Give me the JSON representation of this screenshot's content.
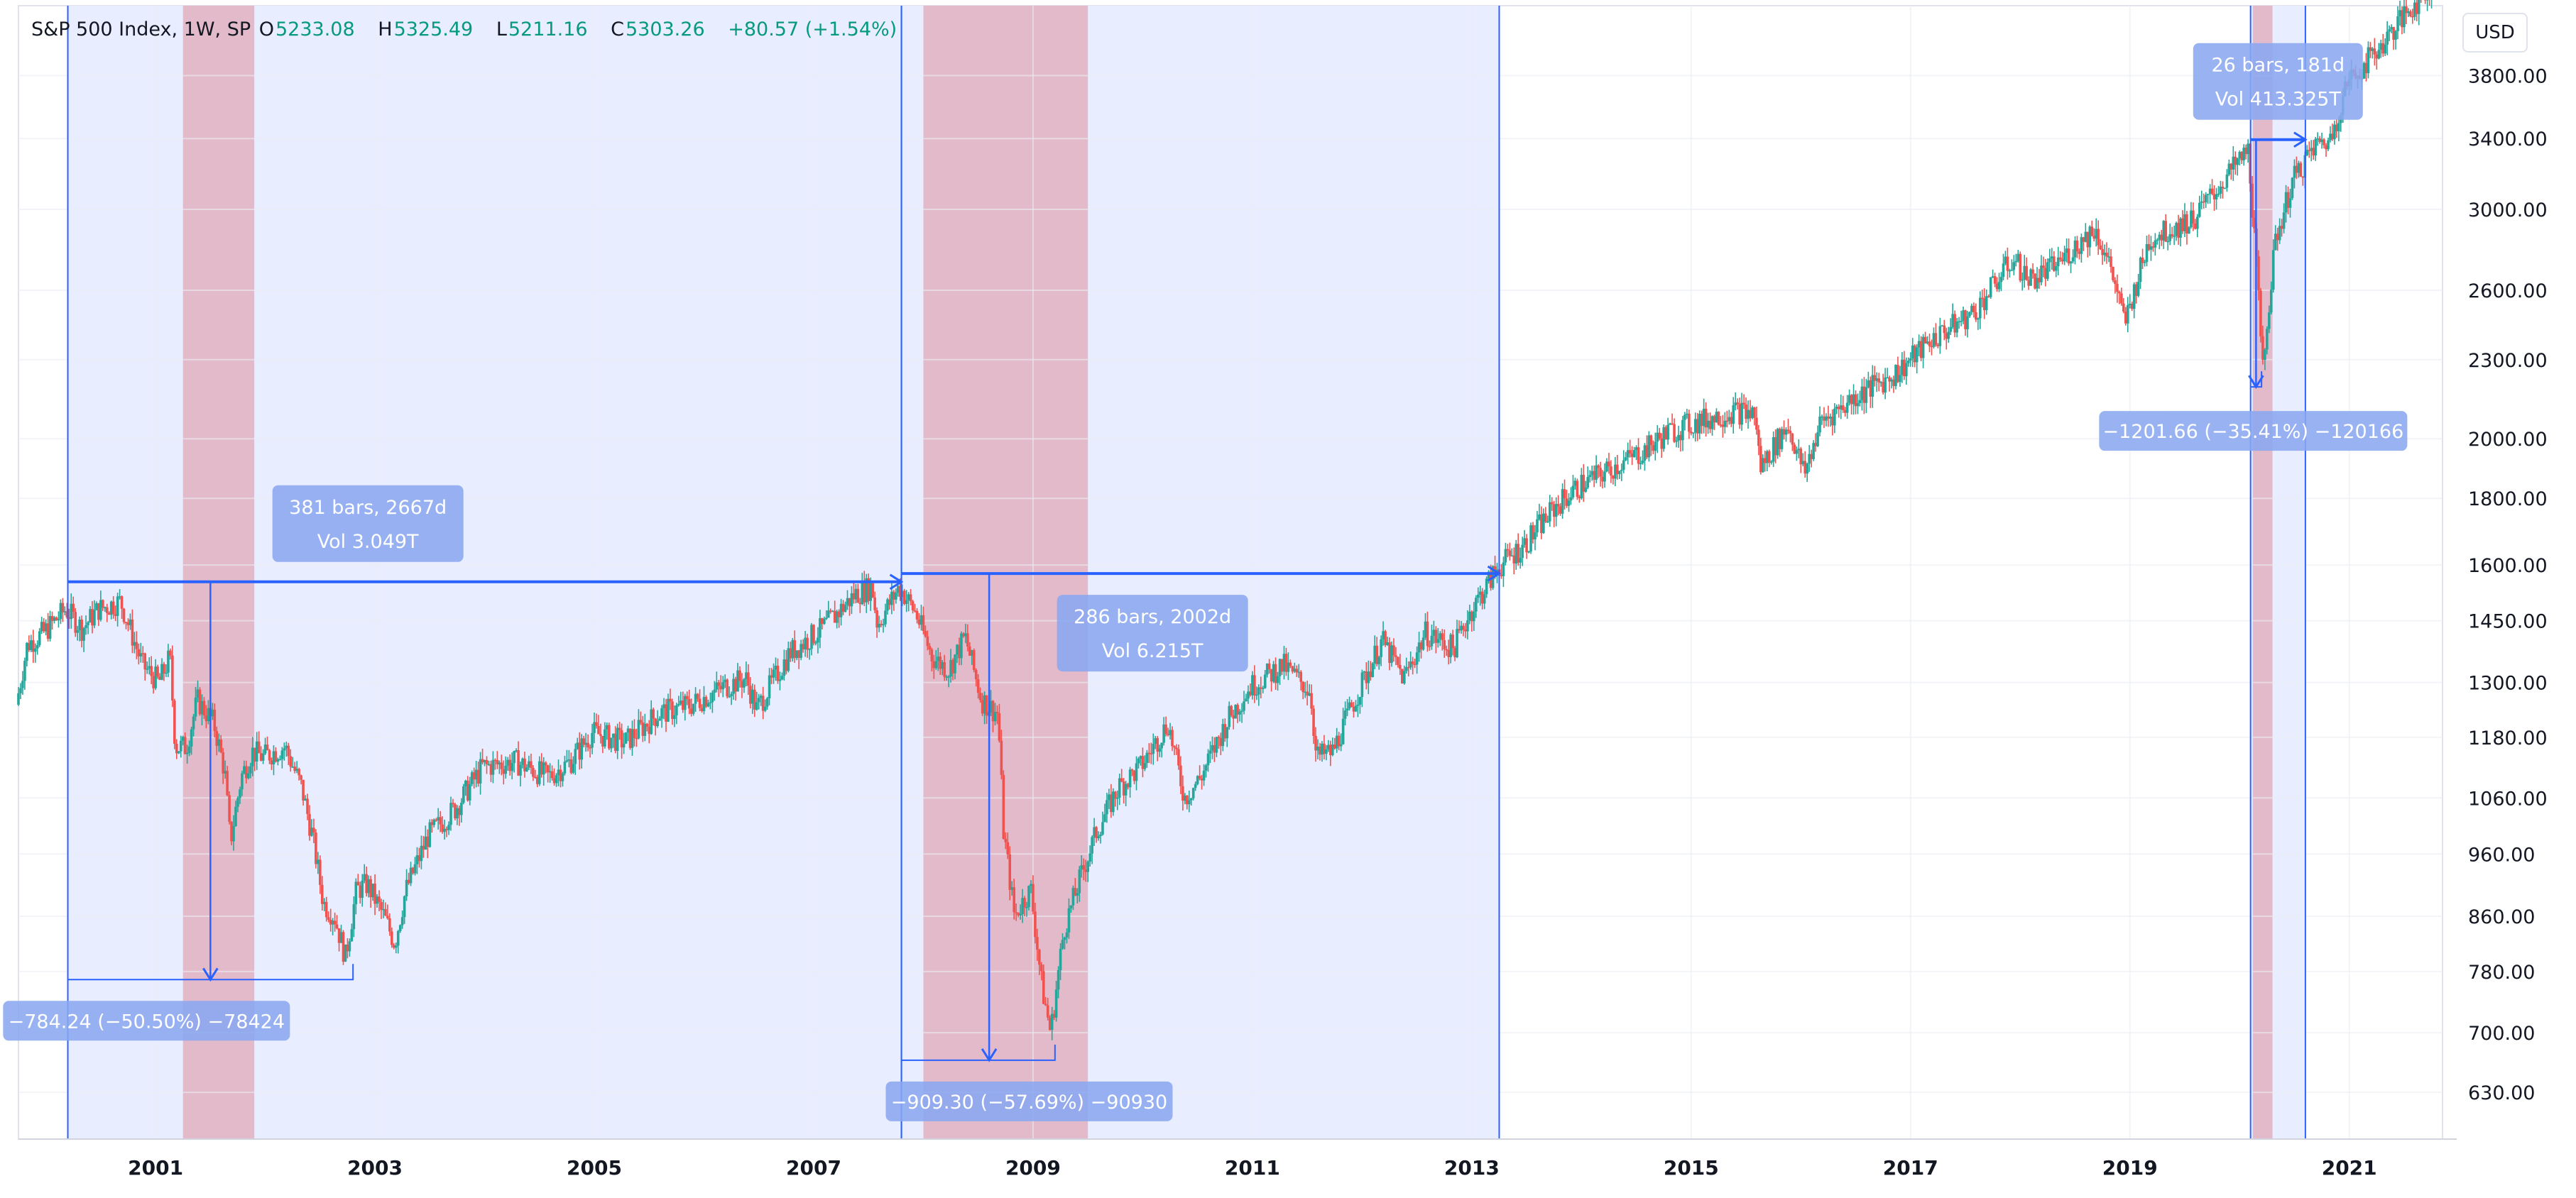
{
  "legend": {
    "symbol": "S&P 500 Index, 1W, SP",
    "open_label": "O",
    "open": "5233.08",
    "high_label": "H",
    "high": "5325.49",
    "low_label": "L",
    "low": "5211.16",
    "close_label": "C",
    "close": "5303.26",
    "change": "+80.57 (+1.54%)"
  },
  "currency": "USD",
  "colors": {
    "up": "#26a69a",
    "down": "#ef5350",
    "measure_fill": "#e8eeff",
    "measure_line": "#2962ff",
    "recession": "#e3b6c6",
    "label_bg": "#8aa7f0"
  },
  "chart_data": {
    "type": "candlestick",
    "scale": "log",
    "x_ticks": [
      "2001",
      "2003",
      "2005",
      "2007",
      "2009",
      "2011",
      "2013",
      "2015",
      "2017",
      "2019",
      "2021"
    ],
    "y_ticks": [
      630,
      700,
      780,
      860,
      960,
      1060,
      1180,
      1300,
      1450,
      1600,
      1800,
      2000,
      2300,
      2600,
      3000,
      3400,
      3800
    ],
    "y_tick_labels": [
      "630.00",
      "700.00",
      "780.00",
      "860.00",
      "960.00",
      "1060.00",
      "1180.00",
      "1300.00",
      "1450.00",
      "1600.00",
      "1800.00",
      "2000.00",
      "2300.00",
      "2600.00",
      "3000.00",
      "3400.00",
      "3800.00"
    ],
    "ylim": [
      580,
      4300
    ],
    "xlim": [
      1999.75,
      2021.85
    ],
    "series_path": [
      [
        1999.75,
        1250
      ],
      [
        1999.85,
        1390
      ],
      [
        2000.0,
        1420
      ],
      [
        2000.2,
        1480
      ],
      [
        2000.35,
        1430
      ],
      [
        2000.5,
        1480
      ],
      [
        2000.7,
        1500
      ],
      [
        2000.9,
        1340
      ],
      [
        2001.05,
        1300
      ],
      [
        2001.15,
        1360
      ],
      [
        2001.2,
        1160
      ],
      [
        2001.3,
        1160
      ],
      [
        2001.4,
        1260
      ],
      [
        2001.55,
        1210
      ],
      [
        2001.65,
        1110
      ],
      [
        2001.7,
        980
      ],
      [
        2001.8,
        1100
      ],
      [
        2001.9,
        1150
      ],
      [
        2002.0,
        1140
      ],
      [
        2002.2,
        1160
      ],
      [
        2002.35,
        1080
      ],
      [
        2002.45,
        990
      ],
      [
        2002.55,
        880
      ],
      [
        2002.65,
        860
      ],
      [
        2002.75,
        800
      ],
      [
        2002.85,
        900
      ],
      [
        2002.95,
        910
      ],
      [
        2003.1,
        860
      ],
      [
        2003.2,
        820
      ],
      [
        2003.3,
        900
      ],
      [
        2003.5,
        990
      ],
      [
        2003.75,
        1040
      ],
      [
        2004.0,
        1120
      ],
      [
        2004.3,
        1130
      ],
      [
        2004.6,
        1100
      ],
      [
        2004.8,
        1130
      ],
      [
        2005.0,
        1190
      ],
      [
        2005.3,
        1170
      ],
      [
        2005.6,
        1230
      ],
      [
        2005.9,
        1250
      ],
      [
        2006.2,
        1290
      ],
      [
        2006.4,
        1310
      ],
      [
        2006.5,
        1240
      ],
      [
        2006.8,
        1370
      ],
      [
        2007.1,
        1430
      ],
      [
        2007.4,
        1520
      ],
      [
        2007.55,
        1540
      ],
      [
        2007.6,
        1440
      ],
      [
        2007.8,
        1540
      ],
      [
        2007.95,
        1470
      ],
      [
        2008.1,
        1360
      ],
      [
        2008.25,
        1330
      ],
      [
        2008.4,
        1410
      ],
      [
        2008.55,
        1260
      ],
      [
        2008.7,
        1230
      ],
      [
        2008.75,
        1000
      ],
      [
        2008.85,
        860
      ],
      [
        2008.95,
        890
      ],
      [
        2009.0,
        900
      ],
      [
        2009.1,
        760
      ],
      [
        2009.18,
        700
      ],
      [
        2009.3,
        840
      ],
      [
        2009.45,
        920
      ],
      [
        2009.6,
        1000
      ],
      [
        2009.8,
        1080
      ],
      [
        2010.0,
        1120
      ],
      [
        2010.25,
        1210
      ],
      [
        2010.4,
        1060
      ],
      [
        2010.55,
        1100
      ],
      [
        2010.8,
        1220
      ],
      [
        2011.0,
        1290
      ],
      [
        2011.3,
        1340
      ],
      [
        2011.55,
        1280
      ],
      [
        2011.6,
        1140
      ],
      [
        2011.75,
        1150
      ],
      [
        2011.95,
        1260
      ],
      [
        2012.2,
        1400
      ],
      [
        2012.4,
        1310
      ],
      [
        2012.6,
        1420
      ],
      [
        2012.85,
        1380
      ],
      [
        2013.0,
        1470
      ],
      [
        2013.25,
        1590
      ],
      [
        2013.5,
        1660
      ],
      [
        2013.8,
        1780
      ],
      [
        2014.0,
        1840
      ],
      [
        2014.3,
        1900
      ],
      [
        2014.6,
        1960
      ],
      [
        2014.8,
        2020
      ],
      [
        2015.0,
        2050
      ],
      [
        2015.4,
        2100
      ],
      [
        2015.6,
        2090
      ],
      [
        2015.65,
        1900
      ],
      [
        2015.9,
        2050
      ],
      [
        2016.05,
        1880
      ],
      [
        2016.2,
        2060
      ],
      [
        2016.5,
        2150
      ],
      [
        2016.9,
        2250
      ],
      [
        2017.2,
        2380
      ],
      [
        2017.6,
        2500
      ],
      [
        2017.95,
        2750
      ],
      [
        2018.1,
        2650
      ],
      [
        2018.3,
        2700
      ],
      [
        2018.7,
        2900
      ],
      [
        2018.85,
        2700
      ],
      [
        2018.97,
        2450
      ],
      [
        2019.2,
        2850
      ],
      [
        2019.4,
        2900
      ],
      [
        2019.6,
        2950
      ],
      [
        2019.8,
        3100
      ],
      [
        2020.1,
        3330
      ],
      [
        2020.2,
        2500
      ],
      [
        2020.22,
        2250
      ],
      [
        2020.35,
        2850
      ],
      [
        2020.5,
        3150
      ],
      [
        2020.7,
        3350
      ],
      [
        2020.85,
        3400
      ],
      [
        2021.0,
        3750
      ],
      [
        2021.3,
        4000
      ],
      [
        2021.5,
        4200
      ],
      [
        2021.8,
        4500
      ]
    ],
    "recessions": [
      [
        2001.25,
        2001.9
      ],
      [
        2008.0,
        2009.5
      ],
      [
        2020.12,
        2020.3
      ]
    ],
    "measures": [
      {
        "x_start": 2000.2,
        "x_end": 2007.8,
        "y_start": 1553.11,
        "y_end": 768.87,
        "drop_x": 2001.5,
        "drop_box_end": 2002.8,
        "range_label_line1": "381 bars, 2667d",
        "range_label_line2": "Vol 3.049T",
        "drop_label": "−784.24 (−50.50%) −78424"
      },
      {
        "x_start": 2007.8,
        "x_end": 2013.25,
        "y_start": 1576.09,
        "y_end": 666.79,
        "drop_x": 2008.6,
        "drop_box_end": 2009.2,
        "range_label_line1": "286 bars, 2002d",
        "range_label_line2": "Vol 6.215T",
        "drop_label": "−909.30 (−57.69%) −90930"
      },
      {
        "x_start": 2020.1,
        "x_end": 2020.6,
        "y_start": 3393.52,
        "y_end": 2191.86,
        "drop_x": 2020.15,
        "drop_box_end": 2020.2,
        "range_label_line1": "26 bars, 181d",
        "range_label_line2": "Vol 413.325T",
        "drop_label": "−1201.66 (−35.41%) −120166"
      }
    ]
  }
}
